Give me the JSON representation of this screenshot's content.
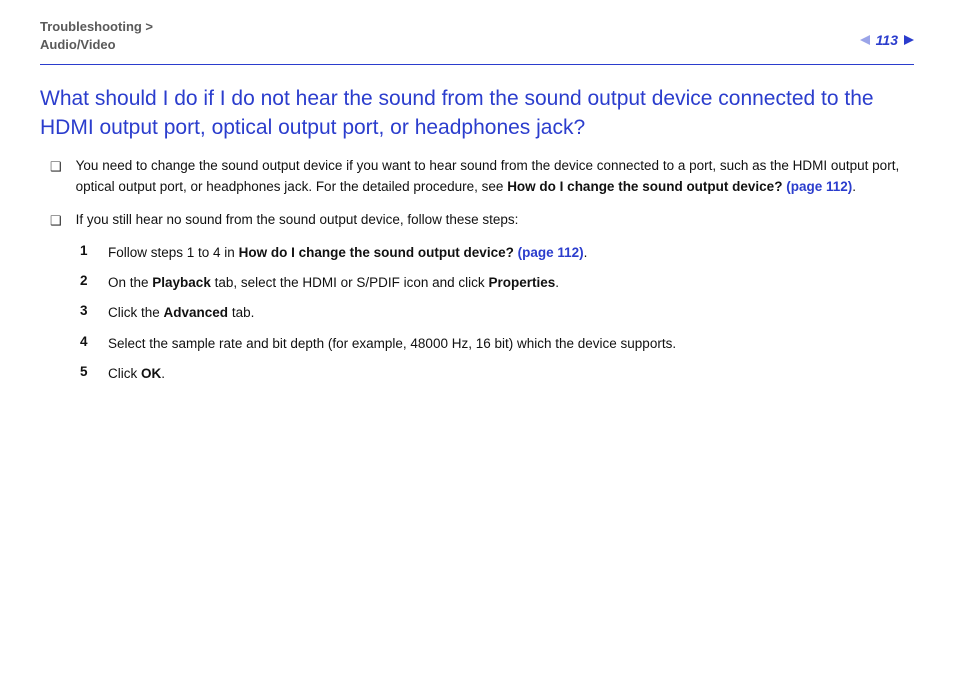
{
  "colors": {
    "accent": "#2b3dcd",
    "accent_light": "#9aa4e8",
    "text": "#111111",
    "muted": "#5a5a5a",
    "background": "#ffffff"
  },
  "header": {
    "breadcrumb_line1": "Troubleshooting >",
    "breadcrumb_line2": "Audio/Video",
    "page_number": "113"
  },
  "heading": "What should I do if I do not hear the sound from the sound output device connected to the HDMI output port, optical output port, or headphones jack?",
  "bullets": [
    {
      "mark": "❑",
      "parts": [
        {
          "t": "You need to change the sound output device if you want to hear sound from the device connected to a port, such as the HDMI output port, optical output port, or headphones jack. For the detailed procedure, see ",
          "b": false
        },
        {
          "t": "How do I change the sound output device? ",
          "b": true
        },
        {
          "t": "(page 112)",
          "b": true,
          "link": true
        },
        {
          "t": ".",
          "b": false
        }
      ]
    },
    {
      "mark": "❑",
      "parts": [
        {
          "t": "If you still hear no sound from the sound output device, follow these steps:",
          "b": false
        }
      ]
    }
  ],
  "steps": [
    {
      "n": "1",
      "parts": [
        {
          "t": "Follow steps 1 to 4 in ",
          "b": false
        },
        {
          "t": "How do I change the sound output device? ",
          "b": true
        },
        {
          "t": "(page 112)",
          "b": true,
          "link": true
        },
        {
          "t": ".",
          "b": false
        }
      ]
    },
    {
      "n": "2",
      "parts": [
        {
          "t": "On the ",
          "b": false
        },
        {
          "t": "Playback",
          "b": true
        },
        {
          "t": " tab, select the HDMI or S/PDIF icon and click ",
          "b": false
        },
        {
          "t": "Properties",
          "b": true
        },
        {
          "t": ".",
          "b": false
        }
      ]
    },
    {
      "n": "3",
      "parts": [
        {
          "t": "Click the ",
          "b": false
        },
        {
          "t": "Advanced",
          "b": true
        },
        {
          "t": " tab.",
          "b": false
        }
      ]
    },
    {
      "n": "4",
      "parts": [
        {
          "t": "Select the sample rate and bit depth (for example, 48000 Hz, 16 bit) which the device supports.",
          "b": false
        }
      ]
    },
    {
      "n": "5",
      "parts": [
        {
          "t": "Click ",
          "b": false
        },
        {
          "t": "OK",
          "b": true
        },
        {
          "t": ".",
          "b": false
        }
      ]
    }
  ]
}
